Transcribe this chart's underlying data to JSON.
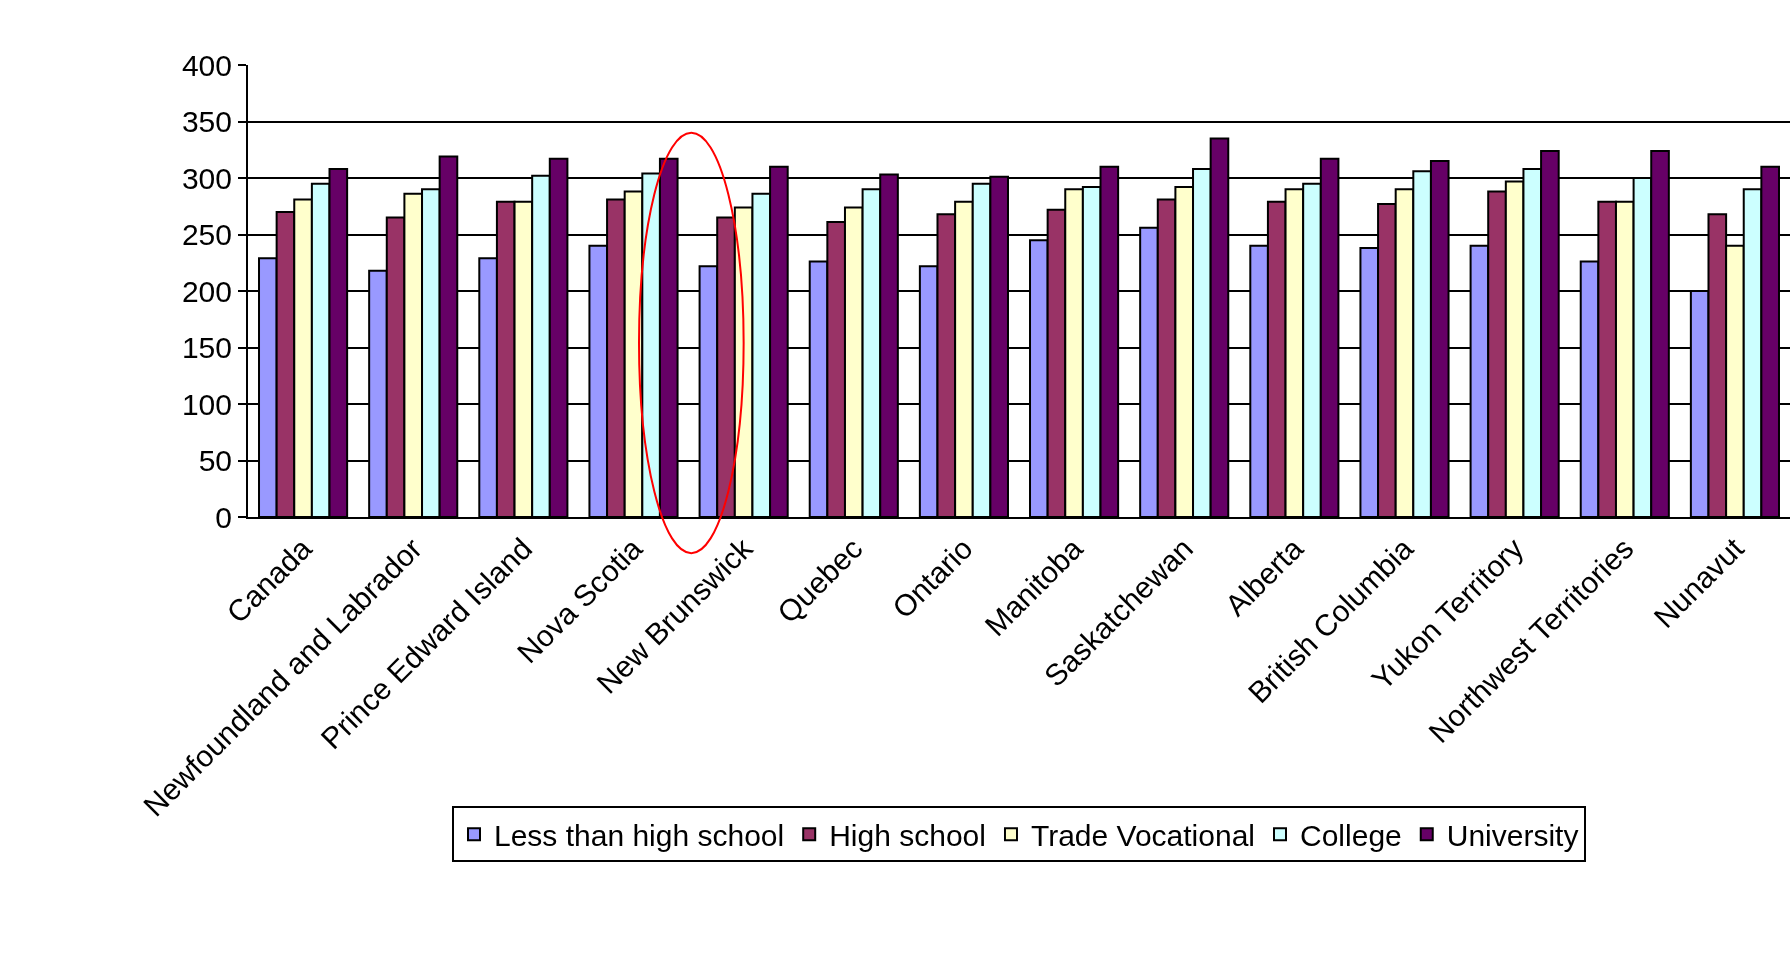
{
  "chart_data": {
    "type": "bar",
    "categories": [
      "Canada",
      "Newfoundland and Labrador",
      "Prince Edward Island",
      "Nova Scotia",
      "New Brunswick",
      "Quebec",
      "Ontario",
      "Manitoba",
      "Saskatchewan",
      "Alberta",
      "British Columbia",
      "Yukon Territory",
      "Northwest Territories",
      "Nunavut"
    ],
    "series": [
      {
        "name": "Less than high school",
        "color": "#9999ff",
        "values": [
          229,
          218,
          229,
          240,
          222,
          226,
          222,
          245,
          256,
          240,
          238,
          240,
          226,
          200
        ]
      },
      {
        "name": "High school",
        "color": "#993366",
        "values": [
          270,
          265,
          279,
          281,
          265,
          261,
          268,
          272,
          281,
          279,
          277,
          288,
          279,
          268
        ]
      },
      {
        "name": "Trade Vocational",
        "color": "#ffffcc",
        "values": [
          281,
          286,
          279,
          288,
          274,
          274,
          279,
          290,
          292,
          290,
          290,
          297,
          279,
          240
        ]
      },
      {
        "name": "College",
        "color": "#ccffff",
        "values": [
          295,
          290,
          302,
          304,
          286,
          290,
          295,
          292,
          308,
          295,
          306,
          308,
          300,
          290
        ]
      },
      {
        "name": "University",
        "color": "#660066",
        "values": [
          308,
          319,
          317,
          317,
          310,
          303,
          301,
          310,
          335,
          317,
          315,
          324,
          324,
          310
        ]
      }
    ],
    "ylim": [
      0,
      400
    ],
    "yticks": [
      0,
      50,
      100,
      150,
      200,
      250,
      300,
      350,
      400
    ],
    "grid": "y",
    "legend": "bottom"
  }
}
